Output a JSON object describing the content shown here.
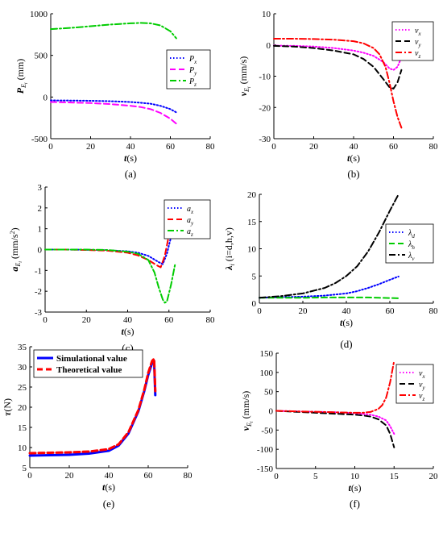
{
  "chart_data": [
    {
      "id": "a",
      "type": "line",
      "caption": "(a)",
      "ylabel": "P",
      "ylabel_sub": "E",
      "ylabel_sub2": "i",
      "ylabel_unit": "(mm)",
      "xlabel": "t",
      "xlabel_unit": "(s)",
      "xlim": [
        0,
        80
      ],
      "ylim": [
        -500,
        1000
      ],
      "xticks": [
        "0",
        "20",
        "40",
        "60",
        "80"
      ],
      "yticks": [
        "-500",
        "0",
        "500",
        "1000"
      ],
      "legend_position": "center-right",
      "series": [
        {
          "name": "P",
          "sub": "x",
          "color": "#0000ff",
          "dash": "dotted",
          "x": [
            0,
            10,
            20,
            30,
            40,
            45,
            50,
            55,
            60,
            63
          ],
          "y": [
            -40,
            -42,
            -45,
            -50,
            -60,
            -68,
            -80,
            -105,
            -145,
            -185
          ]
        },
        {
          "name": "P",
          "sub": "y",
          "color": "#ff00ff",
          "dash": "dashed",
          "x": [
            0,
            10,
            20,
            30,
            40,
            45,
            50,
            55,
            60,
            63
          ],
          "y": [
            -60,
            -65,
            -72,
            -85,
            -105,
            -120,
            -145,
            -190,
            -260,
            -320
          ]
        },
        {
          "name": "P",
          "sub": "z",
          "color": "#00cc00",
          "dash": "dashdot",
          "x": [
            0,
            10,
            20,
            30,
            40,
            45,
            50,
            55,
            60,
            63
          ],
          "y": [
            815,
            830,
            850,
            870,
            885,
            890,
            885,
            860,
            790,
            705
          ]
        }
      ]
    },
    {
      "id": "b",
      "type": "line",
      "caption": "(b)",
      "ylabel": "v",
      "ylabel_sub": "E",
      "ylabel_sub2": "i",
      "ylabel_unit": "(mm/s)",
      "xlabel": "t",
      "xlabel_unit": "(s)",
      "xlim": [
        0,
        80
      ],
      "ylim": [
        -30,
        10
      ],
      "xticks": [
        "0",
        "20",
        "40",
        "60",
        "80"
      ],
      "yticks": [
        "-30",
        "-20",
        "-10",
        "0",
        "10"
      ],
      "legend_position": "top-right",
      "series": [
        {
          "name": "v",
          "sub": "x",
          "color": "#ff00ff",
          "dash": "dotted",
          "x": [
            0,
            10,
            20,
            30,
            40,
            45,
            50,
            55,
            58,
            60,
            62,
            64
          ],
          "y": [
            -0.2,
            -0.3,
            -0.5,
            -1,
            -1.8,
            -2.5,
            -3.5,
            -5.5,
            -7.5,
            -8,
            -7,
            -4
          ]
        },
        {
          "name": "v",
          "sub": "y",
          "color": "#000000",
          "dash": "dashed",
          "x": [
            0,
            10,
            20,
            30,
            40,
            45,
            50,
            55,
            58,
            60,
            62,
            64
          ],
          "y": [
            -0.3,
            -0.5,
            -1,
            -1.8,
            -3,
            -4.5,
            -7,
            -11,
            -13.5,
            -14,
            -12,
            -8
          ]
        },
        {
          "name": "v",
          "sub": "z",
          "color": "#ff0000",
          "dash": "dashdot",
          "x": [
            0,
            10,
            20,
            30,
            40,
            45,
            50,
            53,
            56,
            58,
            60,
            62,
            64
          ],
          "y": [
            2,
            2,
            1.9,
            1.7,
            1.2,
            0.5,
            -1,
            -3,
            -7,
            -12,
            -18,
            -23,
            -26.5
          ]
        }
      ]
    },
    {
      "id": "c",
      "type": "line",
      "caption": "(c)",
      "ylabel": "a",
      "ylabel_sub": "E",
      "ylabel_sub2": "i",
      "ylabel_unit": "(mm/s",
      "ylabel_sup": "2",
      "ylabel_close": ")",
      "xlabel": "t",
      "xlabel_unit": "(s)",
      "xlim": [
        0,
        80
      ],
      "ylim": [
        -3,
        3
      ],
      "xticks": [
        "0",
        "20",
        "40",
        "60",
        "80"
      ],
      "yticks": [
        "-3",
        "-2",
        "-1",
        "0",
        "1",
        "2",
        "3"
      ],
      "legend_position": "top-right",
      "series": [
        {
          "name": "a",
          "sub": "x",
          "color": "#0000ff",
          "dash": "dotted",
          "x": [
            0,
            10,
            20,
            30,
            40,
            45,
            50,
            55,
            57,
            59,
            61,
            63
          ],
          "y": [
            0,
            0,
            -0.01,
            -0.03,
            -0.08,
            -0.15,
            -0.3,
            -0.6,
            -0.7,
            -0.2,
            0.6,
            1.2
          ]
        },
        {
          "name": "a",
          "sub": "y",
          "color": "#ff0000",
          "dash": "dashed",
          "x": [
            0,
            10,
            20,
            30,
            40,
            45,
            50,
            54,
            56,
            58,
            60,
            62,
            63
          ],
          "y": [
            0,
            0,
            -0.02,
            -0.05,
            -0.15,
            -0.28,
            -0.5,
            -0.75,
            -0.85,
            -0.3,
            0.7,
            1.8,
            2.2
          ]
        },
        {
          "name": "a",
          "sub": "z",
          "color": "#00cc00",
          "dash": "dashdot",
          "x": [
            0,
            10,
            20,
            30,
            40,
            45,
            50,
            53,
            55,
            57,
            58,
            59,
            61,
            63
          ],
          "y": [
            0,
            0,
            0,
            -0.02,
            -0.1,
            -0.2,
            -0.5,
            -1.1,
            -1.8,
            -2.4,
            -2.55,
            -2.5,
            -1.7,
            -0.7
          ]
        }
      ]
    },
    {
      "id": "d",
      "type": "line",
      "caption": "(d)",
      "ylabel": "λ",
      "ylabel_sub": "i",
      "ylabel_unit": "(i=d,h,v)",
      "xlabel": "t",
      "xlabel_unit": "(s)",
      "xlim": [
        0,
        80
      ],
      "ylim": [
        0,
        20
      ],
      "xticks": [
        "0",
        "20",
        "40",
        "60",
        "80"
      ],
      "yticks": [
        "0",
        "5",
        "10",
        "15",
        "20"
      ],
      "legend_position": "center-right",
      "series": [
        {
          "name": "λ",
          "sub": "d",
          "color": "#0000ff",
          "dash": "dotted",
          "x": [
            0,
            10,
            20,
            30,
            40,
            45,
            50,
            55,
            60,
            64
          ],
          "y": [
            1,
            1.1,
            1.2,
            1.4,
            1.8,
            2.2,
            2.8,
            3.5,
            4.3,
            4.9
          ]
        },
        {
          "name": "λ",
          "sub": "h",
          "color": "#00cc00",
          "dash": "dashed",
          "x": [
            0,
            10,
            20,
            30,
            40,
            45,
            50,
            55,
            60,
            64
          ],
          "y": [
            1,
            1,
            1,
            1.05,
            1.05,
            1.05,
            1.05,
            1,
            0.95,
            0.9
          ]
        },
        {
          "name": "λ",
          "sub": "v",
          "color": "#000000",
          "dash": "dashdot",
          "x": [
            0,
            10,
            20,
            30,
            35,
            40,
            45,
            50,
            55,
            60,
            64
          ],
          "y": [
            1,
            1.3,
            1.8,
            2.8,
            3.7,
            5,
            6.8,
            9.5,
            13,
            17,
            20
          ]
        }
      ]
    },
    {
      "id": "e",
      "type": "line",
      "caption": "(e)",
      "ylabel": "τ",
      "ylabel_unit": "(N)",
      "xlabel": "t",
      "xlabel_unit": "(s)",
      "xlim": [
        0,
        80
      ],
      "ylim": [
        5,
        35
      ],
      "xticks": [
        "0",
        "20",
        "40",
        "60",
        "80"
      ],
      "yticks": [
        "5",
        "10",
        "15",
        "20",
        "25",
        "30",
        "35"
      ],
      "legend_position": "top-left",
      "series": [
        {
          "name": "Simulational value",
          "color": "#0000ff",
          "dash": "solid",
          "width": 3,
          "x": [
            0,
            10,
            20,
            30,
            40,
            45,
            50,
            55,
            58,
            60,
            62,
            63,
            63.3,
            63.6
          ],
          "y": [
            8,
            8.1,
            8.2,
            8.5,
            9.2,
            10.5,
            13.5,
            19,
            24,
            28,
            31,
            31.5,
            27,
            23
          ]
        },
        {
          "name": "Theoretical value",
          "color": "#ff0000",
          "dash": "dashed",
          "width": 3,
          "x": [
            0,
            10,
            20,
            30,
            40,
            45,
            50,
            55,
            58,
            60,
            62,
            63,
            63.3,
            63.6
          ],
          "y": [
            8.6,
            8.7,
            8.8,
            9,
            9.6,
            10.8,
            13.8,
            19.3,
            24.3,
            28.5,
            31.5,
            32,
            28,
            24
          ]
        }
      ]
    },
    {
      "id": "f",
      "type": "line",
      "caption": "(f)",
      "ylabel": "v",
      "ylabel_sub": "E",
      "ylabel_sub2": "i",
      "ylabel_unit": "(mm/s)",
      "xlabel": "t",
      "xlabel_unit": "(s)",
      "xlim": [
        0,
        20
      ],
      "ylim": [
        -150,
        150
      ],
      "xticks": [
        "0",
        "5",
        "10",
        "15",
        "20"
      ],
      "yticks": [
        "-150",
        "-100",
        "-50",
        "0",
        "50",
        "100",
        "150"
      ],
      "legend_position": "top-right",
      "series": [
        {
          "name": "v",
          "sub": "x",
          "color": "#ff00ff",
          "dash": "dotted",
          "x": [
            0,
            2,
            4,
            6,
            8,
            10,
            11,
            12,
            13,
            14,
            14.5,
            15
          ],
          "y": [
            0,
            -1,
            -2,
            -3,
            -4,
            -6,
            -8,
            -10,
            -15,
            -25,
            -40,
            -60
          ]
        },
        {
          "name": "v",
          "sub": "y",
          "color": "#000000",
          "dash": "dashed",
          "x": [
            0,
            2,
            4,
            6,
            8,
            10,
            11,
            12,
            13,
            14,
            14.5,
            15
          ],
          "y": [
            0,
            -2,
            -4,
            -6,
            -8,
            -10,
            -12,
            -15,
            -22,
            -38,
            -60,
            -95
          ]
        },
        {
          "name": "v",
          "sub": "z",
          "color": "#ff0000",
          "dash": "dashdot",
          "x": [
            0,
            2,
            4,
            6,
            8,
            10,
            11,
            12,
            13,
            13.5,
            14,
            14.5,
            15
          ],
          "y": [
            0,
            -1,
            -2,
            -3,
            -4,
            -5,
            -5,
            -3,
            5,
            15,
            35,
            75,
            130
          ]
        }
      ]
    }
  ]
}
